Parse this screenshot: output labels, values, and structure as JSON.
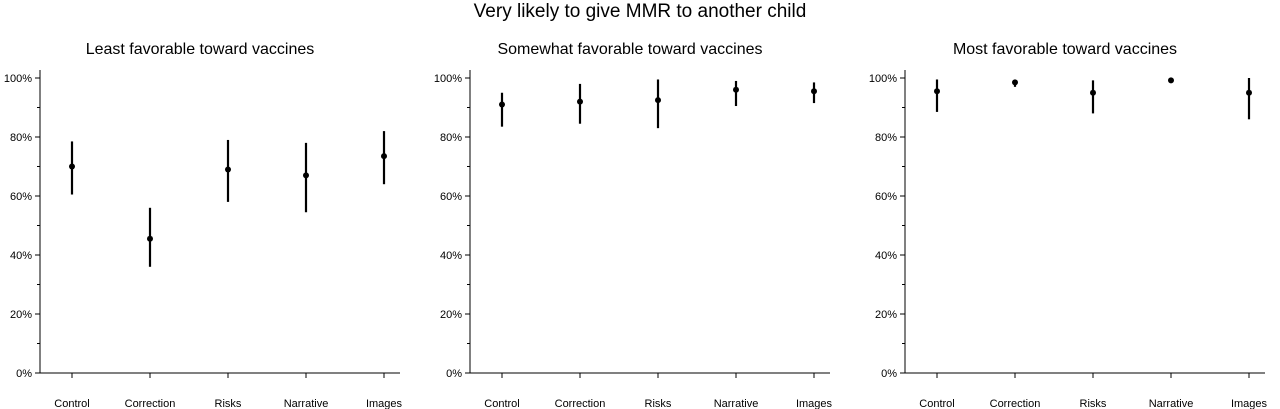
{
  "title": "Very likely to give MMR to another child",
  "chart_data": [
    {
      "type": "scatter",
      "title": "Least favorable toward vaccines",
      "categories": [
        "Control",
        "Correction",
        "Risks",
        "Narrative",
        "Images"
      ],
      "values": [
        70,
        45.5,
        69,
        67,
        73.5
      ],
      "lower": [
        60.5,
        36,
        58,
        54.5,
        64
      ],
      "upper": [
        78.5,
        56,
        79,
        78,
        82
      ],
      "ylim": [
        0,
        100
      ],
      "yticks": [
        "0%",
        "20%",
        "40%",
        "60%",
        "80%",
        "100%"
      ],
      "grid": false
    },
    {
      "type": "scatter",
      "title": "Somewhat favorable toward vaccines",
      "categories": [
        "Control",
        "Correction",
        "Risks",
        "Narrative",
        "Images"
      ],
      "values": [
        91,
        92,
        92.5,
        96,
        95.5
      ],
      "lower": [
        83.5,
        84.5,
        83,
        90.5,
        91.5
      ],
      "upper": [
        95,
        98,
        99.5,
        99,
        98.5
      ],
      "ylim": [
        0,
        100
      ],
      "yticks": [
        "0%",
        "20%",
        "40%",
        "60%",
        "80%",
        "100%"
      ],
      "grid": false
    },
    {
      "type": "scatter",
      "title": "Most favorable toward vaccines",
      "categories": [
        "Control",
        "Correction",
        "Risks",
        "Narrative",
        "Images"
      ],
      "values": [
        95.5,
        98.5,
        95,
        99.2,
        95
      ],
      "lower": [
        88.5,
        97,
        88,
        98.3,
        86
      ],
      "upper": [
        99.5,
        99.2,
        99.2,
        99.8,
        100
      ],
      "ylim": [
        0,
        100
      ],
      "yticks": [
        "0%",
        "20%",
        "40%",
        "60%",
        "80%",
        "100%"
      ],
      "grid": false
    }
  ]
}
